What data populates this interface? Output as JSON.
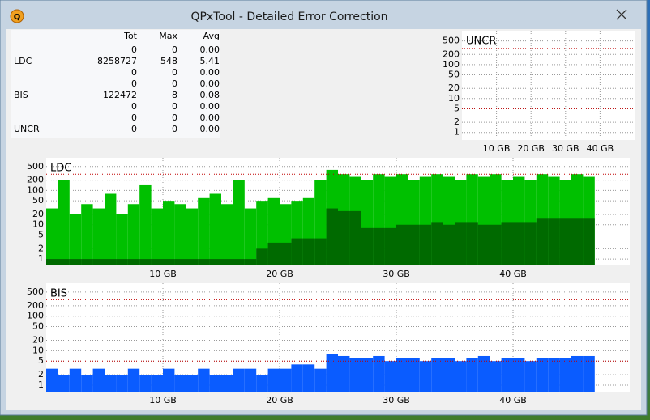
{
  "window": {
    "title": "QPxTool - Detailed Error Correction"
  },
  "stats": {
    "headers": [
      "Tot",
      "Max",
      "Avg"
    ],
    "rows": [
      {
        "cells": [
          "0",
          "0",
          "0.00"
        ]
      },
      {
        "label": "LDC",
        "cells": [
          "8258727",
          "548",
          "5.41"
        ]
      },
      {
        "cells": [
          "0",
          "0",
          "0.00"
        ]
      },
      {
        "cells": [
          "0",
          "0",
          "0.00"
        ]
      },
      {
        "label": "BIS",
        "cells": [
          "122472",
          "8",
          "0.08"
        ]
      },
      {
        "cells": [
          "0",
          "0",
          "0.00"
        ]
      },
      {
        "cells": [
          "0",
          "0",
          "0.00"
        ]
      },
      {
        "label": "UNCR",
        "cells": [
          "0",
          "0",
          "0.00"
        ]
      }
    ]
  },
  "chart_data": [
    {
      "type": "bar",
      "title": "UNCR",
      "log_scale": true,
      "grid": true,
      "xlim": [
        0,
        50
      ],
      "ylim": [
        0.6,
        1000
      ],
      "xticks": [
        {
          "value": 10,
          "label": "10 GB"
        },
        {
          "value": 20,
          "label": "20 GB"
        },
        {
          "value": 30,
          "label": "30 GB"
        },
        {
          "value": 40,
          "label": "40 GB"
        }
      ],
      "yticks": [
        1,
        2,
        5,
        10,
        20,
        50,
        100,
        200,
        500
      ],
      "limits": [
        300,
        5
      ],
      "x": [],
      "series": []
    },
    {
      "type": "bar",
      "title": "LDC",
      "log_scale": true,
      "grid": true,
      "xlim": [
        0,
        50
      ],
      "ylim": [
        0.65,
        900
      ],
      "xticks": [
        {
          "value": 10,
          "label": "10 GB"
        },
        {
          "value": 20,
          "label": "20 GB"
        },
        {
          "value": 30,
          "label": "30 GB"
        },
        {
          "value": 40,
          "label": "40 GB"
        }
      ],
      "yticks": [
        1,
        2,
        5,
        10,
        20,
        50,
        100,
        200,
        500
      ],
      "limits": [
        300,
        5
      ],
      "x": [
        0.5,
        1.5,
        2.5,
        3.5,
        4.5,
        5.5,
        6.5,
        7.5,
        8.5,
        9.5,
        10.5,
        11.5,
        12.5,
        13.5,
        14.5,
        15.5,
        16.5,
        17.5,
        18.5,
        19.5,
        20.5,
        21.5,
        22.5,
        23.5,
        24.5,
        25.5,
        26.5,
        27.5,
        28.5,
        29.5,
        30.5,
        31.5,
        32.5,
        33.5,
        34.5,
        35.5,
        36.5,
        37.5,
        38.5,
        39.5,
        40.5,
        41.5,
        42.5,
        43.5,
        44.5,
        45.5,
        46.5
      ],
      "series": [
        {
          "color": "#00c000",
          "values": [
            30,
            200,
            20,
            40,
            30,
            80,
            20,
            40,
            150,
            30,
            50,
            40,
            30,
            60,
            80,
            40,
            200,
            30,
            50,
            60,
            40,
            50,
            60,
            200,
            400,
            300,
            250,
            200,
            300,
            250,
            300,
            200,
            250,
            300,
            250,
            200,
            300,
            250,
            300,
            200,
            250,
            200,
            300,
            250,
            200,
            300,
            250
          ]
        },
        {
          "color": "#006a00",
          "values": [
            1,
            1,
            1,
            1,
            1,
            1,
            1,
            1,
            1,
            1,
            1,
            1,
            1,
            1,
            1,
            1,
            1,
            1,
            2,
            3,
            3,
            4,
            4,
            4,
            30,
            25,
            25,
            8,
            8,
            8,
            10,
            10,
            10,
            12,
            10,
            12,
            12,
            10,
            10,
            12,
            12,
            12,
            15,
            15,
            15,
            15,
            15
          ]
        }
      ]
    },
    {
      "type": "bar",
      "title": "BIS",
      "log_scale": true,
      "grid": true,
      "xlim": [
        0,
        50
      ],
      "ylim": [
        0.65,
        900
      ],
      "xticks": [
        {
          "value": 10,
          "label": "10 GB"
        },
        {
          "value": 20,
          "label": "20 GB"
        },
        {
          "value": 30,
          "label": "30 GB"
        },
        {
          "value": 40,
          "label": "40 GB"
        }
      ],
      "yticks": [
        1,
        2,
        5,
        10,
        20,
        50,
        100,
        200,
        500
      ],
      "limits": [
        300,
        5
      ],
      "x": [
        0.5,
        1.5,
        2.5,
        3.5,
        4.5,
        5.5,
        6.5,
        7.5,
        8.5,
        9.5,
        10.5,
        11.5,
        12.5,
        13.5,
        14.5,
        15.5,
        16.5,
        17.5,
        18.5,
        19.5,
        20.5,
        21.5,
        22.5,
        23.5,
        24.5,
        25.5,
        26.5,
        27.5,
        28.5,
        29.5,
        30.5,
        31.5,
        32.5,
        33.5,
        34.5,
        35.5,
        36.5,
        37.5,
        38.5,
        39.5,
        40.5,
        41.5,
        42.5,
        43.5,
        44.5,
        45.5,
        46.5
      ],
      "series": [
        {
          "color": "#0a5cff",
          "values": [
            3,
            2,
            3,
            2,
            3,
            2,
            2,
            3,
            2,
            2,
            3,
            2,
            2,
            3,
            2,
            2,
            3,
            3,
            2,
            3,
            3,
            4,
            4,
            3,
            8,
            7,
            6,
            6,
            7,
            5,
            6,
            6,
            5,
            6,
            6,
            5,
            6,
            7,
            5,
            6,
            6,
            5,
            6,
            6,
            6,
            7,
            7
          ]
        }
      ]
    }
  ]
}
